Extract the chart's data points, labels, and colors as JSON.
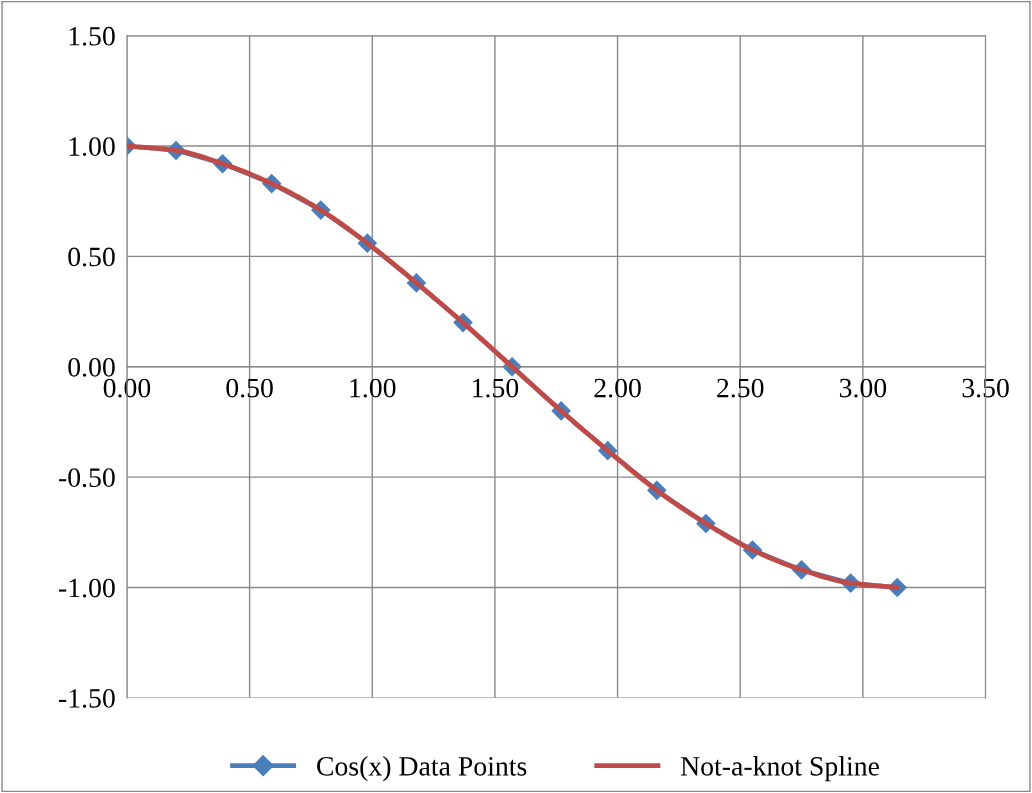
{
  "chart_data": {
    "type": "line",
    "series": [
      {
        "name": "Cos(x) Data Points",
        "color": "#4a7ebb",
        "marker": "diamond",
        "x": [
          0,
          0.2,
          0.39,
          0.59,
          0.79,
          0.98,
          1.18,
          1.37,
          1.57,
          1.77,
          1.96,
          2.16,
          2.36,
          2.55,
          2.75,
          2.95,
          3.14
        ],
        "values": [
          1,
          0.98,
          0.92,
          0.83,
          0.71,
          0.56,
          0.38,
          0.2,
          0,
          -0.2,
          -0.38,
          -0.56,
          -0.71,
          -0.83,
          -0.92,
          -0.98,
          -1
        ]
      },
      {
        "name": "Not-a-knot Spline",
        "color": "#be4b48",
        "marker": "none",
        "x": [
          0,
          0.2,
          0.39,
          0.59,
          0.79,
          0.98,
          1.18,
          1.37,
          1.57,
          1.77,
          1.96,
          2.16,
          2.36,
          2.55,
          2.75,
          2.95,
          3.14
        ],
        "values": [
          1,
          0.98,
          0.92,
          0.83,
          0.71,
          0.56,
          0.38,
          0.2,
          0,
          -0.2,
          -0.38,
          -0.56,
          -0.71,
          -0.83,
          -0.92,
          -0.98,
          -1
        ]
      }
    ],
    "xlim": [
      0,
      3.5
    ],
    "xticks": [
      {
        "value": 0,
        "label": "0.00"
      },
      {
        "value": 0.5,
        "label": "0.50"
      },
      {
        "value": 1,
        "label": "1.00"
      },
      {
        "value": 1.5,
        "label": "1.50"
      },
      {
        "value": 2,
        "label": "2.00"
      },
      {
        "value": 2.5,
        "label": "2.50"
      },
      {
        "value": 3,
        "label": "3.00"
      },
      {
        "value": 3.5,
        "label": "3.50"
      }
    ],
    "ylim": [
      -1.5,
      1.5
    ],
    "yticks": [
      {
        "value": -1.5,
        "label": "-1.50"
      },
      {
        "value": -1,
        "label": "-1.00"
      },
      {
        "value": -0.5,
        "label": "-0.50"
      },
      {
        "value": 0,
        "label": "0.00"
      },
      {
        "value": 0.5,
        "label": "0.50"
      },
      {
        "value": 1,
        "label": "1.00"
      },
      {
        "value": 1.5,
        "label": "1.50"
      }
    ],
    "grid": true,
    "legend": "bottom",
    "line_style": "solid"
  }
}
